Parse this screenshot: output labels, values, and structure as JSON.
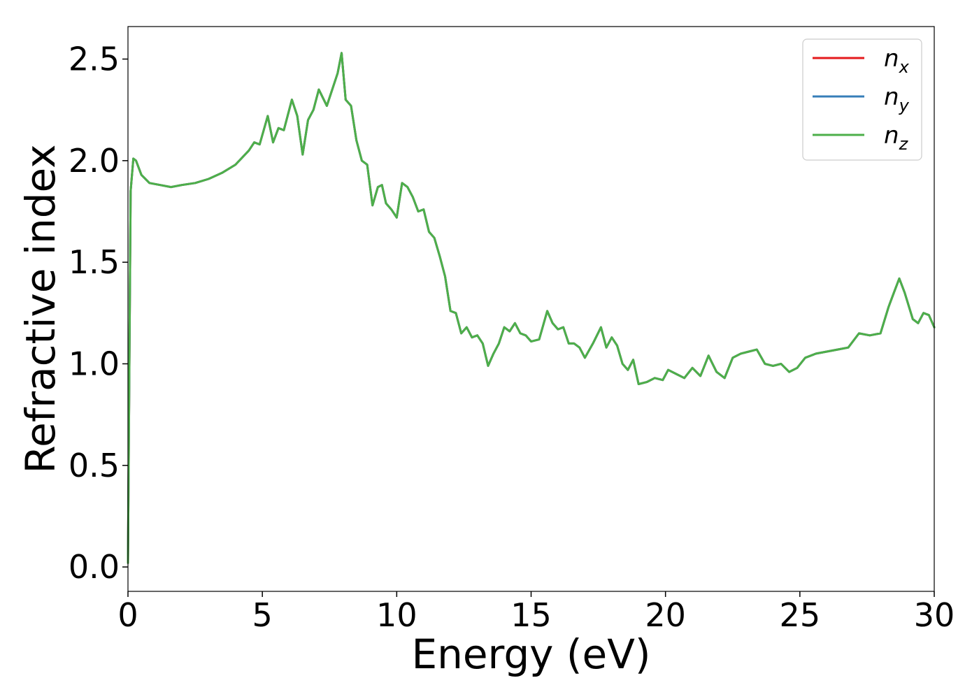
{
  "chart_data": {
    "type": "line",
    "xlabel": "Energy (eV)",
    "ylabel": "Refractive index",
    "xlim": [
      0,
      30
    ],
    "ylim": [
      -0.12,
      2.66
    ],
    "xticks": [
      0,
      5,
      10,
      15,
      20,
      25,
      30
    ],
    "xtick_labels": [
      "0",
      "5",
      "10",
      "15",
      "20",
      "25",
      "30"
    ],
    "yticks": [
      0.0,
      0.5,
      1.0,
      1.5,
      2.0,
      2.5
    ],
    "ytick_labels": [
      "0.0",
      "0.5",
      "1.0",
      "1.5",
      "2.0",
      "2.5"
    ],
    "grid": false,
    "legend_position": "top-right",
    "x": [
      0,
      0.1,
      0.2,
      0.3,
      0.5,
      0.8,
      1.2,
      1.6,
      2.0,
      2.5,
      3.0,
      3.5,
      4.0,
      4.5,
      4.7,
      4.9,
      5.2,
      5.4,
      5.6,
      5.8,
      6.1,
      6.3,
      6.5,
      6.7,
      6.9,
      7.1,
      7.4,
      7.6,
      7.8,
      7.95,
      8.1,
      8.3,
      8.5,
      8.7,
      8.9,
      9.1,
      9.3,
      9.45,
      9.6,
      9.8,
      10.0,
      10.2,
      10.4,
      10.6,
      10.8,
      11.0,
      11.2,
      11.4,
      11.6,
      11.8,
      12.0,
      12.2,
      12.4,
      12.6,
      12.8,
      13.0,
      13.2,
      13.4,
      13.6,
      13.8,
      14.0,
      14.2,
      14.4,
      14.6,
      14.8,
      15.0,
      15.3,
      15.6,
      15.8,
      16.0,
      16.2,
      16.4,
      16.6,
      16.8,
      17.0,
      17.3,
      17.6,
      17.8,
      18.0,
      18.2,
      18.4,
      18.6,
      18.8,
      19.0,
      19.3,
      19.6,
      19.9,
      20.1,
      20.4,
      20.7,
      21.0,
      21.3,
      21.6,
      21.9,
      22.2,
      22.5,
      22.8,
      23.1,
      23.4,
      23.7,
      24.0,
      24.3,
      24.6,
      24.9,
      25.2,
      25.6,
      26.0,
      26.4,
      26.8,
      27.2,
      27.6,
      28.0,
      28.3,
      28.5,
      28.7,
      28.9,
      29.2,
      29.4,
      29.6,
      29.8,
      30.0
    ],
    "series": [
      {
        "name": "n_x",
        "color": "#e41a1c",
        "values": [
          0.02,
          1.85,
          2.01,
          2.0,
          1.93,
          1.89,
          1.88,
          1.87,
          1.88,
          1.89,
          1.91,
          1.94,
          1.98,
          2.05,
          2.09,
          2.08,
          2.22,
          2.09,
          2.16,
          2.15,
          2.3,
          2.22,
          2.03,
          2.2,
          2.25,
          2.35,
          2.27,
          2.35,
          2.43,
          2.53,
          2.3,
          2.27,
          2.1,
          2.0,
          1.98,
          1.78,
          1.87,
          1.88,
          1.79,
          1.76,
          1.72,
          1.89,
          1.87,
          1.82,
          1.75,
          1.76,
          1.65,
          1.62,
          1.53,
          1.43,
          1.26,
          1.25,
          1.15,
          1.18,
          1.13,
          1.14,
          1.1,
          0.99,
          1.05,
          1.1,
          1.18,
          1.16,
          1.2,
          1.15,
          1.14,
          1.11,
          1.12,
          1.26,
          1.2,
          1.17,
          1.18,
          1.1,
          1.1,
          1.08,
          1.03,
          1.1,
          1.18,
          1.08,
          1.13,
          1.09,
          1.0,
          0.97,
          1.02,
          0.9,
          0.91,
          0.93,
          0.92,
          0.97,
          0.95,
          0.93,
          0.98,
          0.94,
          1.04,
          0.96,
          0.93,
          1.03,
          1.05,
          1.06,
          1.07,
          1.0,
          0.99,
          1.0,
          0.96,
          0.98,
          1.03,
          1.05,
          1.06,
          1.07,
          1.08,
          1.15,
          1.14,
          1.15,
          1.28,
          1.35,
          1.42,
          1.35,
          1.22,
          1.2,
          1.25,
          1.24,
          1.18
        ]
      },
      {
        "name": "n_y",
        "color": "#377eb8",
        "values": [
          0.02,
          1.85,
          2.01,
          2.0,
          1.93,
          1.89,
          1.88,
          1.87,
          1.88,
          1.89,
          1.91,
          1.94,
          1.98,
          2.05,
          2.09,
          2.08,
          2.22,
          2.09,
          2.16,
          2.15,
          2.3,
          2.22,
          2.03,
          2.2,
          2.25,
          2.35,
          2.27,
          2.35,
          2.43,
          2.53,
          2.3,
          2.27,
          2.1,
          2.0,
          1.98,
          1.78,
          1.87,
          1.88,
          1.79,
          1.76,
          1.72,
          1.89,
          1.87,
          1.82,
          1.75,
          1.76,
          1.65,
          1.62,
          1.53,
          1.43,
          1.26,
          1.25,
          1.15,
          1.18,
          1.13,
          1.14,
          1.1,
          0.99,
          1.05,
          1.1,
          1.18,
          1.16,
          1.2,
          1.15,
          1.14,
          1.11,
          1.12,
          1.26,
          1.2,
          1.17,
          1.18,
          1.1,
          1.1,
          1.08,
          1.03,
          1.1,
          1.18,
          1.08,
          1.13,
          1.09,
          1.0,
          0.97,
          1.02,
          0.9,
          0.91,
          0.93,
          0.92,
          0.97,
          0.95,
          0.93,
          0.98,
          0.94,
          1.04,
          0.96,
          0.93,
          1.03,
          1.05,
          1.06,
          1.07,
          1.0,
          0.99,
          1.0,
          0.96,
          0.98,
          1.03,
          1.05,
          1.06,
          1.07,
          1.08,
          1.15,
          1.14,
          1.15,
          1.28,
          1.35,
          1.42,
          1.35,
          1.22,
          1.2,
          1.25,
          1.24,
          1.18
        ]
      },
      {
        "name": "n_z",
        "color": "#4daf4a",
        "values": [
          0.02,
          1.85,
          2.01,
          2.0,
          1.93,
          1.89,
          1.88,
          1.87,
          1.88,
          1.89,
          1.91,
          1.94,
          1.98,
          2.05,
          2.09,
          2.08,
          2.22,
          2.09,
          2.16,
          2.15,
          2.3,
          2.22,
          2.03,
          2.2,
          2.25,
          2.35,
          2.27,
          2.35,
          2.43,
          2.53,
          2.3,
          2.27,
          2.1,
          2.0,
          1.98,
          1.78,
          1.87,
          1.88,
          1.79,
          1.76,
          1.72,
          1.89,
          1.87,
          1.82,
          1.75,
          1.76,
          1.65,
          1.62,
          1.53,
          1.43,
          1.26,
          1.25,
          1.15,
          1.18,
          1.13,
          1.14,
          1.1,
          0.99,
          1.05,
          1.1,
          1.18,
          1.16,
          1.2,
          1.15,
          1.14,
          1.11,
          1.12,
          1.26,
          1.2,
          1.17,
          1.18,
          1.1,
          1.1,
          1.08,
          1.03,
          1.1,
          1.18,
          1.08,
          1.13,
          1.09,
          1.0,
          0.97,
          1.02,
          0.9,
          0.91,
          0.93,
          0.92,
          0.97,
          0.95,
          0.93,
          0.98,
          0.94,
          1.04,
          0.96,
          0.93,
          1.03,
          1.05,
          1.06,
          1.07,
          1.0,
          0.99,
          1.0,
          0.96,
          0.98,
          1.03,
          1.05,
          1.06,
          1.07,
          1.08,
          1.15,
          1.14,
          1.15,
          1.28,
          1.35,
          1.42,
          1.35,
          1.22,
          1.2,
          1.25,
          1.24,
          1.18
        ]
      }
    ],
    "legend": [
      {
        "base": "n",
        "sub": "x",
        "color": "#e41a1c"
      },
      {
        "base": "n",
        "sub": "y",
        "color": "#377eb8"
      },
      {
        "base": "n",
        "sub": "z",
        "color": "#4daf4a"
      }
    ]
  }
}
